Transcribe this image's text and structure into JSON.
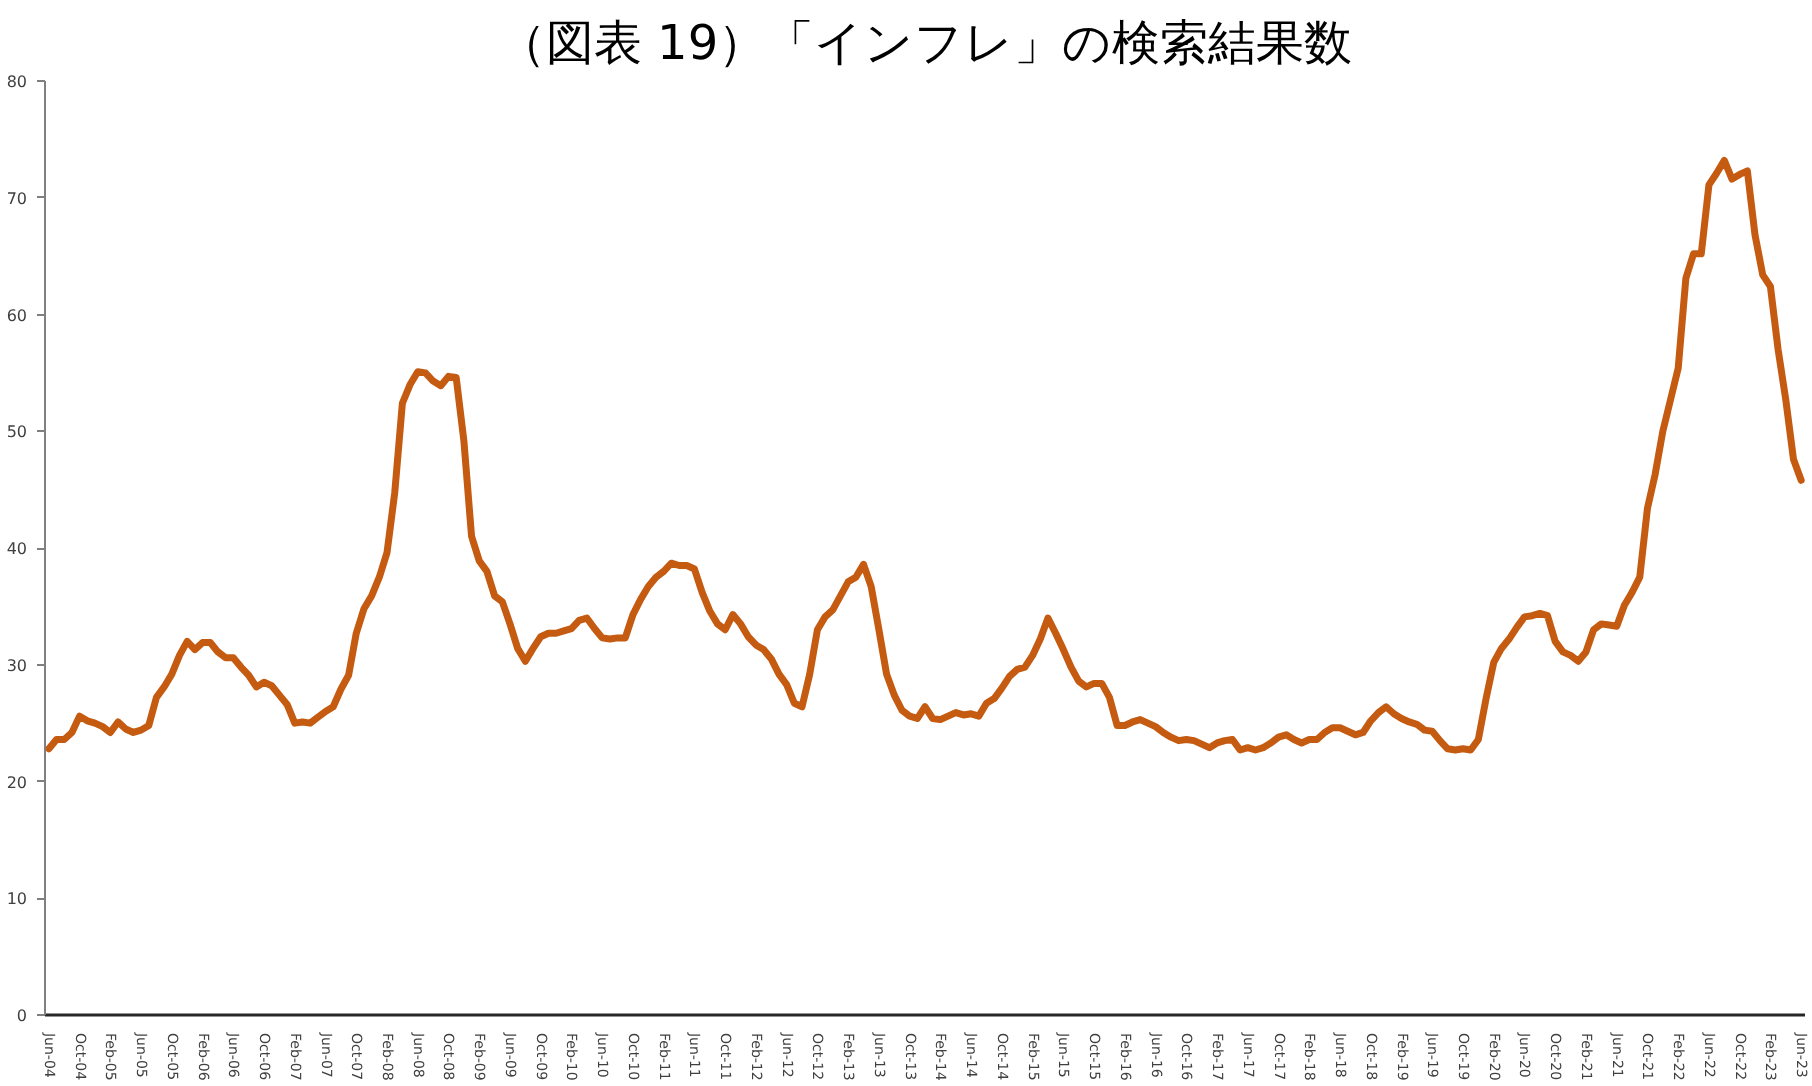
{
  "chart_data": {
    "type": "line",
    "title": "（図表 19）「インフレ」の検索結果数",
    "categories": [
      "Jun-04",
      null,
      null,
      null,
      "Oct-04",
      null,
      null,
      null,
      "Feb-05",
      null,
      null,
      null,
      "Jun-05",
      null,
      null,
      null,
      "Oct-05",
      null,
      null,
      null,
      "Feb-06",
      null,
      null,
      null,
      "Jun-06",
      null,
      null,
      null,
      "Oct-06",
      null,
      null,
      null,
      "Feb-07",
      null,
      null,
      null,
      "Jun-07",
      null,
      null,
      null,
      "Oct-07",
      null,
      null,
      null,
      "Feb-08",
      null,
      null,
      null,
      "Jun-08",
      null,
      null,
      null,
      "Oct-08",
      null,
      null,
      null,
      "Feb-09",
      null,
      null,
      null,
      "Jun-09",
      null,
      null,
      null,
      "Oct-09",
      null,
      null,
      null,
      "Feb-10",
      null,
      null,
      null,
      "Jun-10",
      null,
      null,
      null,
      "Oct-10",
      null,
      null,
      null,
      "Feb-11",
      null,
      null,
      null,
      "Jun-11",
      null,
      null,
      null,
      "Oct-11",
      null,
      null,
      null,
      "Feb-12",
      null,
      null,
      null,
      "Jun-12",
      null,
      null,
      null,
      "Oct-12",
      null,
      null,
      null,
      "Feb-13",
      null,
      null,
      null,
      "Jun-13",
      null,
      null,
      null,
      "Oct-13",
      null,
      null,
      null,
      "Feb-14",
      null,
      null,
      null,
      "Jun-14",
      null,
      null,
      null,
      "Oct-14",
      null,
      null,
      null,
      "Feb-15",
      null,
      null,
      null,
      "Jun-15",
      null,
      null,
      null,
      "Oct-15",
      null,
      null,
      null,
      "Feb-16",
      null,
      null,
      null,
      "Jun-16",
      null,
      null,
      null,
      "Oct-16",
      null,
      null,
      null,
      "Feb-17",
      null,
      null,
      null,
      "Jun-17",
      null,
      null,
      null,
      "Oct-17",
      null,
      null,
      null,
      "Feb-18",
      null,
      null,
      null,
      "Jun-18",
      null,
      null,
      null,
      "Oct-18",
      null,
      null,
      null,
      "Feb-19",
      null,
      null,
      null,
      "Jun-19",
      null,
      null,
      null,
      "Oct-19",
      null,
      null,
      null,
      "Feb-20",
      null,
      null,
      null,
      "Jun-20",
      null,
      null,
      null,
      "Oct-20",
      null,
      null,
      null,
      "Feb-21",
      null,
      null,
      null,
      "Jun-21",
      null,
      null,
      null,
      "Oct-21",
      null,
      null,
      null,
      "Feb-22",
      null,
      null,
      null,
      "Jun-22",
      null,
      null,
      null,
      "Oct-22",
      null,
      null,
      null,
      "Feb-23",
      null,
      null,
      null,
      "Jun-23"
    ],
    "series": [
      {
        "color": "#c55a11",
        "values": [
          22.8,
          23.6,
          23.6,
          24.2,
          25.6,
          25.2,
          25.0,
          24.7,
          24.2,
          25.1,
          24.5,
          24.2,
          24.4,
          24.8,
          27.2,
          28.1,
          29.2,
          30.8,
          32.0,
          31.3,
          31.9,
          31.9,
          31.1,
          30.6,
          30.6,
          29.8,
          29.1,
          28.1,
          28.5,
          28.2,
          27.4,
          26.6,
          25.0,
          25.1,
          25.0,
          25.5,
          26.0,
          26.4,
          27.9,
          29.1,
          32.7,
          34.8,
          35.9,
          37.5,
          39.6,
          44.7,
          52.4,
          54.0,
          55.1,
          55.0,
          54.3,
          53.9,
          54.7,
          54.6,
          49.2,
          41.0,
          38.9,
          38.0,
          35.9,
          35.4,
          33.5,
          31.4,
          30.3,
          31.4,
          32.4,
          32.7,
          32.7,
          32.9,
          33.1,
          33.8,
          34.0,
          33.1,
          32.3,
          32.2,
          32.3,
          32.3,
          34.3,
          35.6,
          36.7,
          37.5,
          38.0,
          38.7,
          38.5,
          38.5,
          38.2,
          36.2,
          34.6,
          33.5,
          33.0,
          34.3,
          33.5,
          32.4,
          31.7,
          31.3,
          30.5,
          29.2,
          28.3,
          26.7,
          26.4,
          29.2,
          33.0,
          34.1,
          34.7,
          35.9,
          37.1,
          37.5,
          38.6,
          36.7,
          33.0,
          29.2,
          27.4,
          26.1,
          25.6,
          25.4,
          26.4,
          25.4,
          25.3,
          25.6,
          25.9,
          25.7,
          25.8,
          25.6,
          26.7,
          27.1,
          28.0,
          29.0,
          29.6,
          29.8,
          30.8,
          32.2,
          34.0,
          32.7,
          31.3,
          29.8,
          28.6,
          28.1,
          28.4,
          28.4,
          27.2,
          24.8,
          24.8,
          25.1,
          25.3,
          25.0,
          24.7,
          24.2,
          23.8,
          23.5,
          23.6,
          23.5,
          23.2,
          22.9,
          23.3,
          23.5,
          23.6,
          22.7,
          22.9,
          22.7,
          22.9,
          23.3,
          23.8,
          24.0,
          23.6,
          23.3,
          23.6,
          23.6,
          24.2,
          24.6,
          24.6,
          24.3,
          24.0,
          24.2,
          25.2,
          25.9,
          26.4,
          25.8,
          25.4,
          25.1,
          24.9,
          24.4,
          24.3,
          23.5,
          22.8,
          22.7,
          22.8,
          22.7,
          23.6,
          27.1,
          30.2,
          31.4,
          32.2,
          33.2,
          34.1,
          34.2,
          34.4,
          34.2,
          32.0,
          31.1,
          30.8,
          30.3,
          31.1,
          33.0,
          33.5,
          33.4,
          33.3,
          35.1,
          36.2,
          37.5,
          43.4,
          46.3,
          50.0,
          52.7,
          55.4,
          63.1,
          65.2,
          65.2,
          71.1,
          72.1,
          73.2,
          71.6,
          72.0,
          72.3,
          66.8,
          63.4,
          62.4,
          57.0,
          52.7,
          47.6,
          45.8
        ]
      }
    ],
    "ylim": [
      0,
      80
    ],
    "yticks": [
      0,
      10,
      20,
      30,
      40,
      50,
      60,
      70,
      80
    ]
  }
}
